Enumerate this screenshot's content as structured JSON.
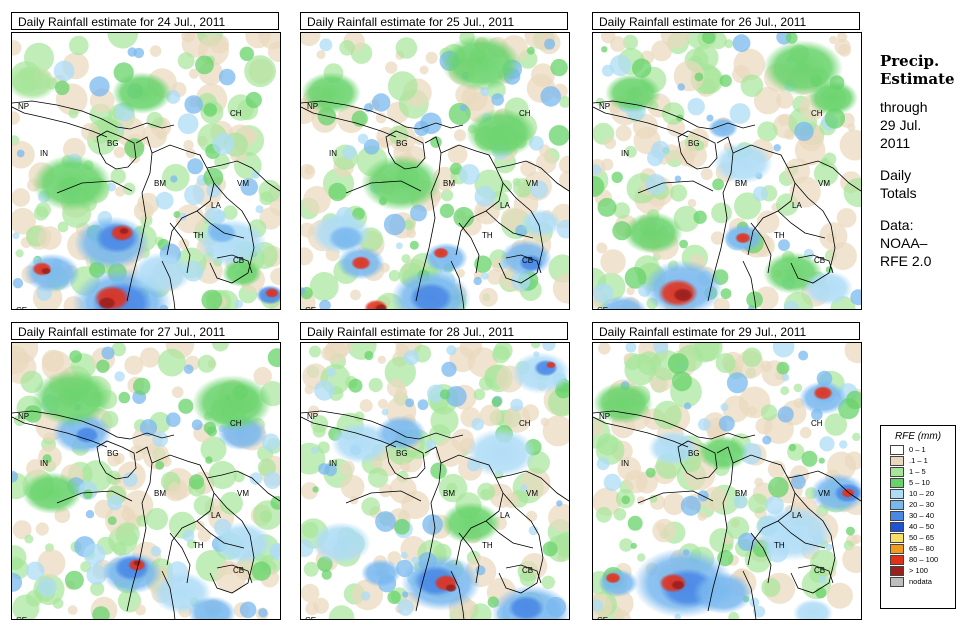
{
  "panels": [
    {
      "title": "Daily Rainfall estimate for  24 Jul., 2011",
      "labels": [
        "NP",
        "CH",
        "IN",
        "BG",
        "BM",
        "VM",
        "LA",
        "TH",
        "CB",
        "CE"
      ]
    },
    {
      "title": "Daily Rainfall estimate for  25 Jul., 2011",
      "labels": [
        "NP",
        "CH",
        "IN",
        "BG",
        "BM",
        "VM",
        "LA",
        "TH",
        "CB",
        "CE"
      ]
    },
    {
      "title": "Daily Rainfall estimate for  26 Jul., 2011",
      "labels": [
        "NP",
        "CH",
        "IN",
        "BG",
        "BM",
        "VM",
        "LA",
        "TH",
        "CB",
        "CE"
      ]
    },
    {
      "title": "Daily Rainfall estimate for  27 Jul., 2011",
      "labels": [
        "NP",
        "CH",
        "IN",
        "BG",
        "BM",
        "VM",
        "LA",
        "TH",
        "CB",
        "CE"
      ]
    },
    {
      "title": "Daily Rainfall estimate for  28 Jul., 2011",
      "labels": [
        "NP",
        "CH",
        "IN",
        "BG",
        "BM",
        "VM",
        "LA",
        "TH",
        "CB",
        "CE"
      ]
    },
    {
      "title": "Daily Rainfall estimate for  29 Jul., 2011",
      "labels": [
        "NP",
        "CH",
        "IN",
        "BG",
        "BM",
        "VM",
        "LA",
        "TH",
        "CB",
        "CE"
      ]
    }
  ],
  "side": {
    "heading1": "Precip.",
    "heading2": "Estimate",
    "line1": "through",
    "line2": "29 Jul.",
    "line3": "2011",
    "daily1": "Daily",
    "daily2": "Totals",
    "data1": "Data:",
    "data2": "NOAA–",
    "data3": "RFE 2.0"
  },
  "legend": {
    "title": "RFE (mm)",
    "items": [
      {
        "label": "0 – 1",
        "color": "#ffffff"
      },
      {
        "label": ".1 – 1",
        "color": "#ead8bd"
      },
      {
        "label": "1 – 5",
        "color": "#a6e59a"
      },
      {
        "label": "5 – 10",
        "color": "#68d36b"
      },
      {
        "label": "10 – 20",
        "color": "#aedcf6"
      },
      {
        "label": "20 – 30",
        "color": "#79b8ef"
      },
      {
        "label": "30 – 40",
        "color": "#4a88e6"
      },
      {
        "label": "40 – 50",
        "color": "#1d52d8"
      },
      {
        "label": "50 – 65",
        "color": "#f8df66"
      },
      {
        "label": "65 – 80",
        "color": "#f29a1c"
      },
      {
        "label": "80 – 100",
        "color": "#e2301b"
      },
      {
        "label": "> 100",
        "color": "#9a1f1d"
      },
      {
        "label": "nodata",
        "color": "#bebebe"
      }
    ]
  }
}
